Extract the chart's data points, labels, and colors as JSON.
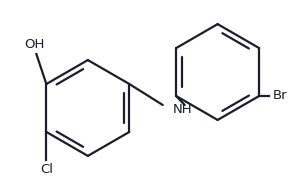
{
  "background": "#ffffff",
  "line_color": "#1c1c2e",
  "line_width": 1.6,
  "font_size": 9.5,
  "font_color": "#1c1c2e",
  "OH_label": "OH",
  "Cl_label": "Cl",
  "NH_label": "NH",
  "Br_label": "Br",
  "figsize": [
    2.91,
    1.91
  ],
  "dpi": 100
}
